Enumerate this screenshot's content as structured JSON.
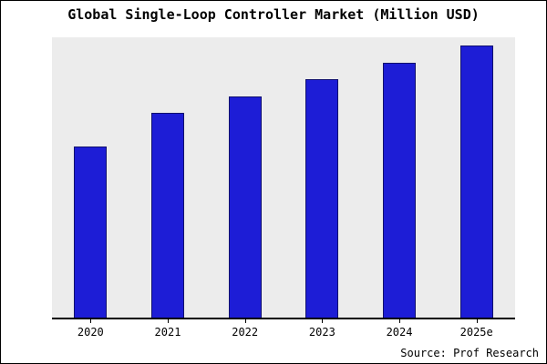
{
  "chart_data": {
    "type": "bar",
    "title": "Global Single-Loop Controller Market (Million USD)",
    "categories": [
      "2020",
      "2021",
      "2022",
      "2023",
      "2024",
      "2025e"
    ],
    "values": [
      61,
      73,
      79,
      85,
      91,
      97
    ],
    "xlabel": "",
    "ylabel": "",
    "ylim": [
      0,
      100
    ],
    "grid": false,
    "legend": "none",
    "bar_color": "#1d1dd6",
    "bar_edge_color": "#10106e",
    "plot_background": "#ececec",
    "note": "y-axis has no tick labels; values estimated as percent of plot height"
  },
  "footer": {
    "source": "Source: Prof Research"
  }
}
